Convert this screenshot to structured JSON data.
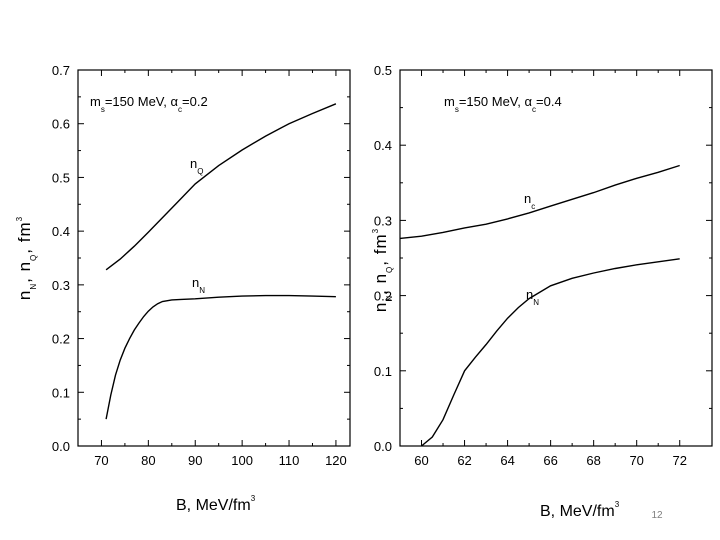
{
  "page_number": "12",
  "chart_data": [
    {
      "type": "line",
      "xlabel": "B,  MeV/fm",
      "xlabel_sup": "3",
      "ylabel": "n , n , fm",
      "ylabel_subs": [
        "N",
        "Q"
      ],
      "ylabel_sup": "3",
      "xlim": [
        65,
        123
      ],
      "ylim": [
        0,
        0.7
      ],
      "xticks": [
        70,
        80,
        90,
        100,
        110,
        120
      ],
      "yticks": [
        0.0,
        0.1,
        0.2,
        0.3,
        0.4,
        0.5,
        0.6,
        0.7
      ],
      "ytick_labels": [
        "0.0",
        "0.1",
        "0.2",
        "0.3",
        "0.4",
        "0.5",
        "0.6",
        "0.7"
      ],
      "annotation": {
        "m": "m",
        "m_sub": "s",
        "m_text": "=150 MeV,",
        "alpha": "α",
        "alpha_sub": "c",
        "alpha_text": "=0.2"
      },
      "series": [
        {
          "name": "n",
          "name_sub": "Q",
          "x": [
            71,
            74,
            77,
            80,
            83,
            86,
            90,
            95,
            100,
            105,
            110,
            115,
            120
          ],
          "y": [
            0.328,
            0.348,
            0.372,
            0.398,
            0.425,
            0.452,
            0.488,
            0.522,
            0.551,
            0.577,
            0.6,
            0.619,
            0.637
          ]
        },
        {
          "name": "n",
          "name_sub": "N",
          "x": [
            71,
            72,
            73,
            74,
            75,
            76,
            77,
            78,
            79,
            80,
            81,
            82,
            83,
            85,
            87,
            90,
            95,
            100,
            105,
            110,
            115,
            120
          ],
          "y": [
            0.05,
            0.095,
            0.132,
            0.16,
            0.182,
            0.2,
            0.216,
            0.229,
            0.241,
            0.251,
            0.259,
            0.265,
            0.269,
            0.272,
            0.273,
            0.274,
            0.277,
            0.279,
            0.28,
            0.28,
            0.279,
            0.278
          ]
        }
      ]
    },
    {
      "type": "line",
      "xlabel": "B,  MeV/fm",
      "xlabel_sup": "3",
      "ylabel": "n , n , fm",
      "ylabel_subs": [
        "N",
        "Q"
      ],
      "ylabel_sup": "3",
      "xlim": [
        59,
        73.5
      ],
      "ylim": [
        0,
        0.5
      ],
      "xticks": [
        60,
        62,
        64,
        66,
        68,
        70,
        72
      ],
      "yticks": [
        0.0,
        0.1,
        0.2,
        0.3,
        0.4,
        0.5
      ],
      "ytick_labels": [
        "0.0",
        "0.1",
        "0.2",
        "0.3",
        "0.4",
        "0.5"
      ],
      "annotation": {
        "m": "m",
        "m_sub": "s",
        "m_text": "=150 MeV,",
        "alpha": "α",
        "alpha_sub": "c",
        "alpha_text": "=0.4"
      },
      "series": [
        {
          "name": "n",
          "name_sub": "c",
          "x": [
            59,
            60,
            61,
            62,
            63,
            64,
            65,
            66,
            67,
            68,
            69,
            70,
            71,
            72
          ],
          "y": [
            0.276,
            0.279,
            0.284,
            0.29,
            0.295,
            0.302,
            0.31,
            0.319,
            0.328,
            0.337,
            0.347,
            0.356,
            0.364,
            0.373
          ]
        },
        {
          "name": "n",
          "name_sub": "N",
          "x": [
            60,
            60.5,
            61,
            61.5,
            62,
            62.5,
            63,
            63.5,
            64,
            64.5,
            65,
            66,
            67,
            68,
            69,
            70,
            71,
            72
          ],
          "y": [
            0.0,
            0.012,
            0.035,
            0.068,
            0.1,
            0.118,
            0.135,
            0.153,
            0.17,
            0.184,
            0.196,
            0.213,
            0.223,
            0.23,
            0.236,
            0.241,
            0.245,
            0.249
          ]
        }
      ]
    }
  ]
}
